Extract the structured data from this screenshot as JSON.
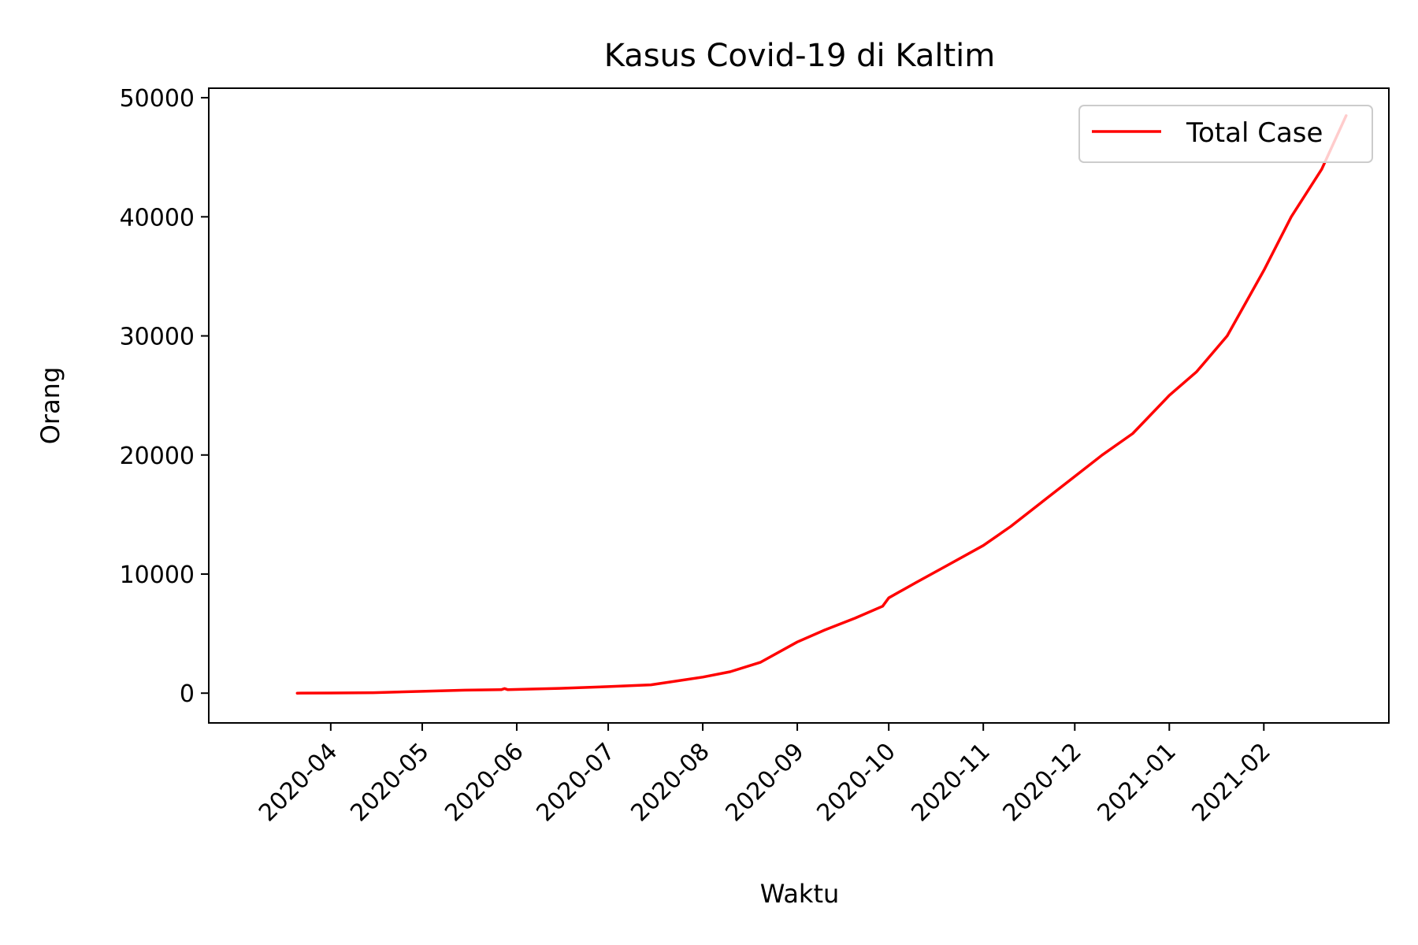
{
  "chart_data": {
    "type": "line",
    "title": "Kasus Covid-19 di Kaltim",
    "xlabel": "Waktu",
    "ylabel": "Orang",
    "x_axis_type": "date",
    "xlim": [
      "2020-02-21",
      "2021-03-14"
    ],
    "ylim": [
      -2500,
      50800
    ],
    "x_ticks": [
      "2020-04",
      "2020-05",
      "2020-06",
      "2020-07",
      "2020-08",
      "2020-09",
      "2020-10",
      "2020-11",
      "2020-12",
      "2021-01",
      "2021-02"
    ],
    "y_ticks": [
      "0",
      "10000",
      "20000",
      "30000",
      "40000",
      "50000"
    ],
    "legend": {
      "position": "top-right",
      "entries": [
        "Total Case"
      ]
    },
    "grid": false,
    "series": [
      {
        "name": "Total Case",
        "color": "#ff0000",
        "points": [
          [
            "2020-03-21",
            0
          ],
          [
            "2020-04-01",
            10
          ],
          [
            "2020-04-15",
            40
          ],
          [
            "2020-05-01",
            150
          ],
          [
            "2020-05-15",
            250
          ],
          [
            "2020-05-27",
            300
          ],
          [
            "2020-05-28",
            380
          ],
          [
            "2020-05-29",
            300
          ],
          [
            "2020-06-15",
            400
          ],
          [
            "2020-07-01",
            550
          ],
          [
            "2020-07-15",
            700
          ],
          [
            "2020-08-01",
            1350
          ],
          [
            "2020-08-10",
            1800
          ],
          [
            "2020-08-20",
            2600
          ],
          [
            "2020-09-01",
            4300
          ],
          [
            "2020-09-10",
            5300
          ],
          [
            "2020-09-20",
            6300
          ],
          [
            "2020-09-29",
            7300
          ],
          [
            "2020-10-01",
            8000
          ],
          [
            "2020-10-10",
            9300
          ],
          [
            "2020-10-20",
            10700
          ],
          [
            "2020-11-01",
            12400
          ],
          [
            "2020-11-10",
            14000
          ],
          [
            "2020-11-20",
            16000
          ],
          [
            "2020-12-01",
            18200
          ],
          [
            "2020-12-10",
            20000
          ],
          [
            "2020-12-20",
            21800
          ],
          [
            "2021-01-01",
            25000
          ],
          [
            "2021-01-10",
            27000
          ],
          [
            "2021-01-20",
            30000
          ],
          [
            "2021-02-01",
            35500
          ],
          [
            "2021-02-10",
            40000
          ],
          [
            "2021-02-20",
            44000
          ],
          [
            "2021-02-28",
            48500
          ]
        ]
      }
    ]
  }
}
